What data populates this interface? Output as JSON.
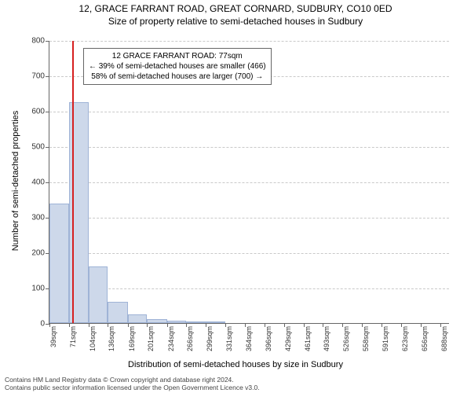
{
  "title_line1": "12, GRACE FARRANT ROAD, GREAT CORNARD, SUDBURY, CO10 0ED",
  "title_line2": "Size of property relative to semi-detached houses in Sudbury",
  "chart": {
    "type": "histogram",
    "y_axis_label": "Number of semi-detached properties",
    "x_axis_label": "Distribution of semi-detached houses by size in Sudbury",
    "ylim": [
      0,
      800
    ],
    "yticks": [
      0,
      100,
      200,
      300,
      400,
      500,
      600,
      700,
      800
    ],
    "x_range_sqm": [
      39,
      704
    ],
    "x_tick_labels": [
      "39sqm",
      "71sqm",
      "104sqm",
      "136sqm",
      "169sqm",
      "201sqm",
      "234sqm",
      "266sqm",
      "299sqm",
      "331sqm",
      "364sqm",
      "396sqm",
      "429sqm",
      "461sqm",
      "493sqm",
      "526sqm",
      "558sqm",
      "591sqm",
      "623sqm",
      "656sqm",
      "688sqm"
    ],
    "x_tick_positions_sqm": [
      39,
      71,
      104,
      136,
      169,
      201,
      234,
      266,
      299,
      331,
      364,
      396,
      429,
      461,
      493,
      526,
      558,
      591,
      623,
      656,
      688
    ],
    "bars": [
      {
        "start_sqm": 39,
        "end_sqm": 71,
        "count": 337
      },
      {
        "start_sqm": 71,
        "end_sqm": 104,
        "count": 624
      },
      {
        "start_sqm": 104,
        "end_sqm": 136,
        "count": 160
      },
      {
        "start_sqm": 136,
        "end_sqm": 169,
        "count": 60
      },
      {
        "start_sqm": 169,
        "end_sqm": 201,
        "count": 25
      },
      {
        "start_sqm": 201,
        "end_sqm": 234,
        "count": 12
      },
      {
        "start_sqm": 234,
        "end_sqm": 266,
        "count": 6
      },
      {
        "start_sqm": 266,
        "end_sqm": 299,
        "count": 3
      },
      {
        "start_sqm": 299,
        "end_sqm": 331,
        "count": 2
      }
    ],
    "reference_line_sqm": 77,
    "bar_fill_color": "#cdd8ea",
    "bar_border_color": "#9fb3d6",
    "grid_color": "#c9c9c9",
    "reference_line_color": "#d62020",
    "background_color": "#ffffff",
    "annotation": {
      "lines": [
        "12 GRACE FARRANT ROAD: 77sqm",
        "← 39% of semi-detached houses are smaller (466)",
        "58% of semi-detached houses are larger (700) →"
      ],
      "left_sqm": 95,
      "top_y_value": 780
    }
  },
  "footer_line1": "Contains HM Land Registry data © Crown copyright and database right 2024.",
  "footer_line2": "Contains public sector information licensed under the Open Government Licence v3.0."
}
